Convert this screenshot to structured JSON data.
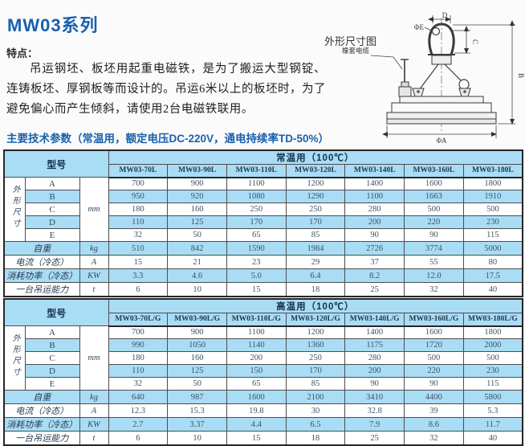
{
  "page": {
    "title": "MW03系列",
    "features_label": "特点：",
    "features_text": "吊运钢坯、板坯用起重电磁铁，是为了搬运大型钢锭、连铸板坯、厚钢板等而设计的。吊运6米以上的板坯时，为了避免偏心而产生倾斜，请使用2台电磁铁联用。",
    "params_heading": "主要技术参数（常温用，额定电压DC-220V，通电持续率TD-50%）",
    "accent_color": "#1961ac",
    "band_color": "#a9dcf5"
  },
  "diagram": {
    "title": "外形尺寸图",
    "cable_label": "橡套电缆",
    "dims": {
      "phi_e": "ΦE",
      "d": "D",
      "c": "C",
      "b": "B",
      "phi_a": "ΦA"
    }
  },
  "table_shared": {
    "model_header": "型号",
    "dim_group_label": "外形尺寸",
    "dim_unit": "mm",
    "dim_row_labels": [
      "A",
      "B",
      "C",
      "D",
      "E"
    ]
  },
  "tables": [
    {
      "group_header": "常温用（100℃）",
      "models": [
        "MW03-70L",
        "MW03-90L",
        "MW03-110L",
        "MW03-120L",
        "MW03-140L",
        "MW03-160L",
        "MW03-180L"
      ],
      "dim_rows": {
        "A": [
          "700",
          "900",
          "1100",
          "1200",
          "1400",
          "1600",
          "1800"
        ],
        "B": [
          "950",
          "920",
          "1080",
          "1290",
          "1100",
          "1663",
          "1910"
        ],
        "C": [
          "180",
          "160",
          "250",
          "250",
          "280",
          "500",
          "500"
        ],
        "D": [
          "110",
          "125",
          "170",
          "170",
          "200",
          "220",
          "230"
        ],
        "E": [
          "32",
          "50",
          "65",
          "85",
          "90",
          "90",
          "115"
        ]
      },
      "spec_rows": [
        {
          "label": "自重",
          "unit": "kg",
          "values": [
            "510",
            "842",
            "1590",
            "1984",
            "2726",
            "3774",
            "5000"
          ]
        },
        {
          "label": "电流（冷态）",
          "unit": "A",
          "values": [
            "15",
            "21",
            "23",
            "29",
            "37",
            "55",
            "80"
          ]
        },
        {
          "label": "消耗功率（冷态）",
          "unit": "KW",
          "values": [
            "3.3",
            "4.6",
            "5.0",
            "6.4",
            "8.2",
            "12.0",
            "17.5"
          ]
        },
        {
          "label": "一台吊运能力",
          "unit": "t",
          "values": [
            "6",
            "10",
            "15",
            "18",
            "25",
            "32",
            "40"
          ]
        }
      ]
    },
    {
      "group_header": "高温用（100℃）",
      "models": [
        "MW03-70L/G",
        "MW03-90L/G",
        "MW03-110L/G",
        "MW03-120L/G",
        "MW03-140L/G",
        "MW03-160L/G",
        "MW03-180L/G"
      ],
      "dim_rows": {
        "A": [
          "700",
          "900",
          "1100",
          "1200",
          "1400",
          "1600",
          "1800"
        ],
        "B": [
          "990",
          "1050",
          "1140",
          "1360",
          "1175",
          "1720",
          "2000"
        ],
        "C": [
          "180",
          "160",
          "200",
          "250",
          "280",
          "500",
          "500"
        ],
        "D": [
          "110",
          "125",
          "150",
          "170",
          "200",
          "220",
          "230"
        ],
        "E": [
          "32",
          "50",
          "65",
          "85",
          "90",
          "90",
          "115"
        ]
      },
      "spec_rows": [
        {
          "label": "自重",
          "unit": "kg",
          "values": [
            "640",
            "987",
            "1600",
            "2100",
            "3410",
            "4400",
            "5800"
          ]
        },
        {
          "label": "电流（冷态）",
          "unit": "A",
          "values": [
            "12.3",
            "15.3",
            "19.8",
            "30",
            "32.8",
            "39",
            "5.3"
          ]
        },
        {
          "label": "消耗功率（冷态）",
          "unit": "KW",
          "values": [
            "2.7",
            "3.37",
            "4.4",
            "6.5",
            "7.9",
            "8.6",
            "11.7"
          ]
        },
        {
          "label": "一台吊运能力",
          "unit": "t",
          "values": [
            "6",
            "10",
            "15",
            "18",
            "25",
            "32",
            "40"
          ]
        }
      ]
    }
  ]
}
